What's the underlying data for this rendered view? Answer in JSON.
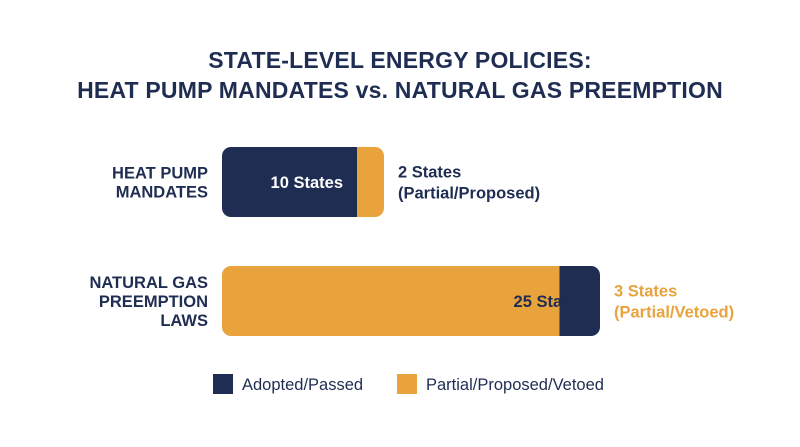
{
  "chart_data": {
    "type": "bar",
    "orientation": "horizontal",
    "stacked": true,
    "title_lines": [
      "STATE-LEVEL ENERGY POLICIES:",
      "HEAT PUMP MANDATES vs. NATURAL GAS PREEMPTION"
    ],
    "categories": [
      {
        "label_lines": [
          "HEAT PUMP",
          "MANDATES"
        ]
      },
      {
        "label_lines": [
          "NATURAL GAS",
          "PREEMPTION",
          "LAWS"
        ]
      }
    ],
    "segments": [
      {
        "name": "Adopted/Passed",
        "color": "#1f2d52"
      },
      {
        "name": "Partial/Proposed/Vetoed",
        "color": "#e8a33d"
      }
    ],
    "rows": [
      {
        "values": [
          10,
          2
        ],
        "inbar_label": "10 States",
        "inbar_segment": 0,
        "inbar_color": "#ffffff",
        "side_label_lines": [
          "2 States",
          "(Partial/Proposed)"
        ],
        "side_color": "#1f2d52"
      },
      {
        "values": [
          25,
          3
        ],
        "inbar_label": "25 States",
        "inbar_segment": 1,
        "inbar_color": "#1f2d52",
        "side_label_lines": [
          "3 States",
          "(Partial/Vetoed)"
        ],
        "side_color": "#e8a33d"
      }
    ],
    "row_segment_colors": [
      [
        "#1f2d52",
        "#e8a33d"
      ],
      [
        "#e8a33d",
        "#1f2d52"
      ]
    ],
    "legend": [
      {
        "label": "Adopted/Passed",
        "color": "#1f2d52"
      },
      {
        "label": "Partial/Proposed/Vetoed",
        "color": "#e8a33d"
      }
    ],
    "legend_position": "bottom",
    "grid": false,
    "xlim": [
      0,
      28
    ]
  },
  "colors": {
    "navy": "#1f2d52",
    "gold": "#e8a33d"
  }
}
